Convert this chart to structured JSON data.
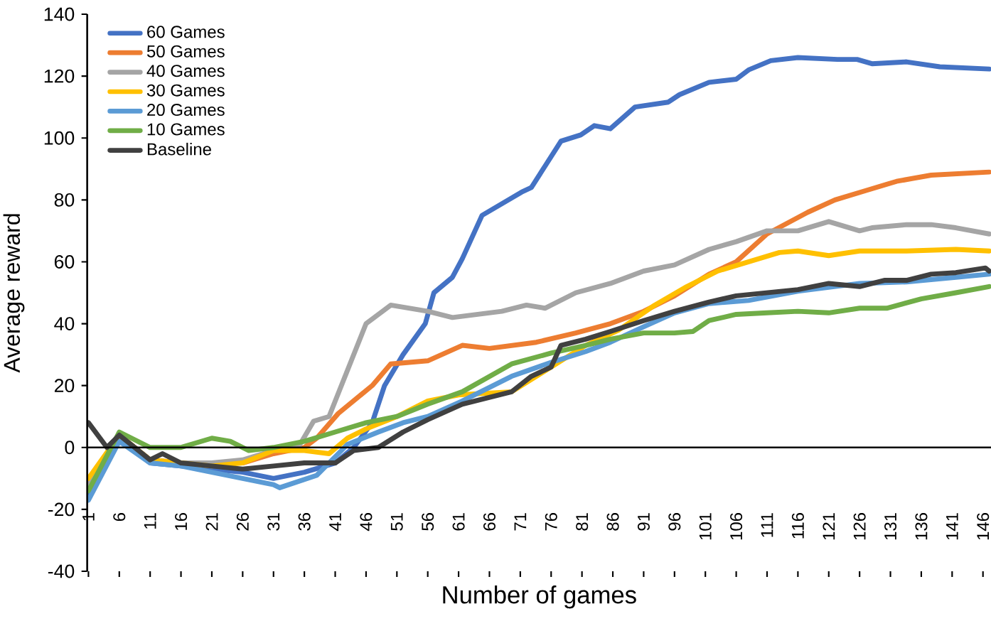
{
  "chart_data": {
    "type": "line",
    "xlabel": "Number of games",
    "ylabel": "Average reward",
    "xlim": [
      0.8,
      147.3
    ],
    "ylim": [
      -40,
      140
    ],
    "xticks": [
      1,
      6,
      11,
      16,
      21,
      26,
      31,
      36,
      41,
      46,
      51,
      56,
      61,
      66,
      71,
      76,
      81,
      86,
      91,
      96,
      101,
      106,
      111,
      116,
      121,
      126,
      131,
      136,
      141,
      146
    ],
    "yticks": [
      -40,
      -20,
      0,
      20,
      40,
      60,
      80,
      100,
      120,
      140
    ],
    "legend": "top left",
    "marker": "none",
    "line_style": "solid",
    "series": [
      {
        "name": "60 Games",
        "color": "#4472c4",
        "x": [
          1,
          6,
          11,
          16,
          21,
          26,
          31,
          36,
          41,
          44,
          47,
          49,
          52,
          55.6,
          57,
          60,
          61.6,
          64.8,
          71.2,
          72.8,
          77.6,
          80.8,
          83,
          85.6,
          89.6,
          95,
          96.8,
          101.6,
          106,
          108,
          111.6,
          116,
          122.4,
          125.6,
          128,
          133.6,
          139,
          147
        ],
        "values": [
          -15,
          3,
          -5,
          -6,
          -7,
          -8,
          -10,
          -8,
          -5,
          0,
          8,
          20,
          30,
          40,
          50,
          55,
          61,
          75,
          82.5,
          84,
          99,
          101,
          104,
          103,
          110,
          111.6,
          114,
          118,
          119,
          122,
          125,
          126,
          125.4,
          125.4,
          124,
          124.6,
          123,
          122.3
        ]
      },
      {
        "name": "50 Games",
        "color": "#ed7d31",
        "x": [
          1,
          6,
          11,
          16,
          21,
          26,
          31,
          36,
          38,
          41.5,
          47,
          50,
          56,
          61.6,
          66,
          73.6,
          80,
          85.6,
          91,
          96,
          101.6,
          106,
          111,
          117.6,
          122,
          127,
          132,
          137.6,
          147
        ],
        "values": [
          -12,
          4,
          -4,
          -5,
          -5,
          -5,
          -2,
          0,
          3,
          11,
          20,
          27,
          28,
          33,
          32,
          34,
          37,
          40,
          44,
          49,
          56,
          60,
          69,
          76,
          80,
          83,
          86,
          88,
          89
        ]
      },
      {
        "name": "40 Games",
        "color": "#a5a5a5",
        "x": [
          1,
          6,
          11,
          16,
          21,
          26,
          31,
          35,
          37.5,
          40,
          46,
          50,
          56,
          60,
          64,
          68,
          72,
          75,
          80,
          85.6,
          91,
          96,
          101.6,
          106,
          111,
          116,
          121,
          126,
          128,
          133.6,
          137.6,
          141.6,
          147
        ],
        "values": [
          -12,
          4,
          -4,
          -5,
          -5,
          -4,
          -1,
          0,
          8.5,
          10,
          40,
          46,
          44,
          42,
          43,
          44,
          46,
          45,
          50,
          53,
          57,
          59,
          64,
          66.5,
          70,
          70,
          73,
          70,
          71,
          72,
          72,
          71,
          69
        ]
      },
      {
        "name": "30 Games",
        "color": "#ffc000",
        "x": [
          1,
          6,
          11,
          16,
          21,
          26,
          31,
          36,
          40,
          43,
          46,
          51,
          56,
          61,
          69.6,
          76,
          81.6,
          87,
          92.8,
          98,
          103,
          108,
          113,
          116,
          121,
          126,
          133.6,
          141.6,
          147
        ],
        "values": [
          -10,
          4,
          -4,
          -5,
          -6,
          -5,
          -1,
          -1,
          -2,
          3,
          6,
          10,
          15,
          17,
          18,
          26,
          33,
          38,
          46,
          52,
          57,
          60,
          63,
          63.5,
          62,
          63.5,
          63.5,
          64,
          63.5
        ]
      },
      {
        "name": "20 Games",
        "color": "#5b9bd5",
        "x": [
          1,
          6,
          11,
          16,
          21,
          26,
          31,
          32,
          38,
          41,
          43,
          48,
          52,
          56,
          61.6,
          69.6,
          76,
          81.6,
          85.6,
          91,
          96,
          101.6,
          108,
          116,
          126,
          133.6,
          141.6,
          147
        ],
        "values": [
          -17,
          2,
          -5,
          -6,
          -8,
          -10,
          -12,
          -13,
          -9,
          -3,
          1,
          5,
          8,
          10,
          15,
          23,
          27.5,
          31,
          34,
          39,
          43.5,
          46.5,
          47.5,
          50.5,
          53,
          53.5,
          55,
          56
        ]
      },
      {
        "name": "10 Games",
        "color": "#70ad47",
        "x": [
          1,
          6,
          11,
          16,
          21,
          24,
          27,
          31,
          36,
          41,
          46,
          51,
          56,
          61.6,
          69.6,
          76,
          81.6,
          85.6,
          91,
          96,
          99,
          101.6,
          106,
          111,
          116,
          121,
          126,
          130.4,
          136,
          141.6,
          147
        ],
        "values": [
          -14,
          5,
          0,
          0,
          3,
          2,
          -1,
          0,
          2,
          5,
          8,
          10,
          14,
          18,
          27,
          30.5,
          33,
          35,
          37,
          37,
          37.5,
          41,
          43,
          43.5,
          44,
          43.5,
          45,
          45,
          48,
          50,
          52
        ]
      },
      {
        "name": "Baseline",
        "color": "#404040",
        "x": [
          1,
          4,
          6,
          11,
          13,
          16,
          21,
          26,
          31,
          36,
          41,
          44,
          48,
          52,
          56,
          61.6,
          65.6,
          69.6,
          72.8,
          76,
          77.6,
          81.6,
          85.6,
          91,
          96,
          101.6,
          106,
          111,
          116,
          121,
          126,
          130,
          133.6,
          137.6,
          141.6,
          146.4,
          147
        ],
        "values": [
          8,
          0,
          4,
          -4,
          -2,
          -5,
          -6,
          -7,
          -6,
          -5,
          -5,
          -1,
          0,
          5,
          9,
          14,
          16,
          18,
          23,
          26,
          33,
          35,
          37.5,
          41,
          44,
          47,
          49,
          50,
          51,
          53,
          52,
          54,
          54,
          56,
          56.5,
          58,
          57
        ]
      }
    ]
  }
}
